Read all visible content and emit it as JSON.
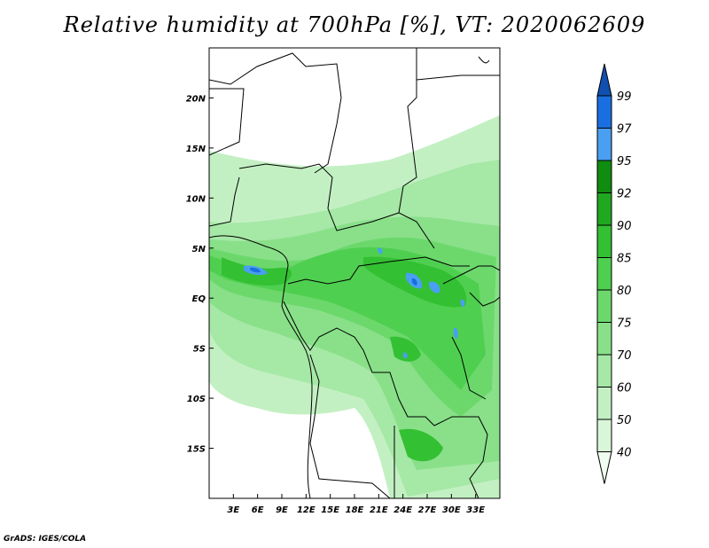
{
  "title": "Relative humidity at 700hPa [%], VT: 2020062609",
  "credit": "GrADS: IGES/COLA",
  "map": {
    "lon_range": [
      0,
      36
    ],
    "lat_range": [
      -20,
      25
    ],
    "x_ticks": [
      "3E",
      "6E",
      "9E",
      "12E",
      "15E",
      "18E",
      "21E",
      "24E",
      "27E",
      "30E",
      "33E"
    ],
    "y_ticks": [
      "20N",
      "15N",
      "10N",
      "5N",
      "EQ",
      "5S",
      "10S",
      "15S"
    ],
    "x_tick_values": [
      3,
      6,
      9,
      12,
      15,
      18,
      21,
      24,
      27,
      30,
      33
    ],
    "y_tick_values": [
      20,
      15,
      10,
      5,
      0,
      -5,
      -10,
      -15
    ]
  },
  "colorbar": {
    "levels": [
      "40",
      "50",
      "60",
      "70",
      "75",
      "80",
      "85",
      "90",
      "92",
      "95",
      "97",
      "99"
    ],
    "colors": [
      "#f0fcf0",
      "#daf6da",
      "#c3f0c3",
      "#a6e8a6",
      "#89e089",
      "#6cd86c",
      "#4fcf4f",
      "#33c033",
      "#20a820",
      "#108c10",
      "#4a9ff0",
      "#1a6fe0",
      "#1050b0"
    ]
  }
}
